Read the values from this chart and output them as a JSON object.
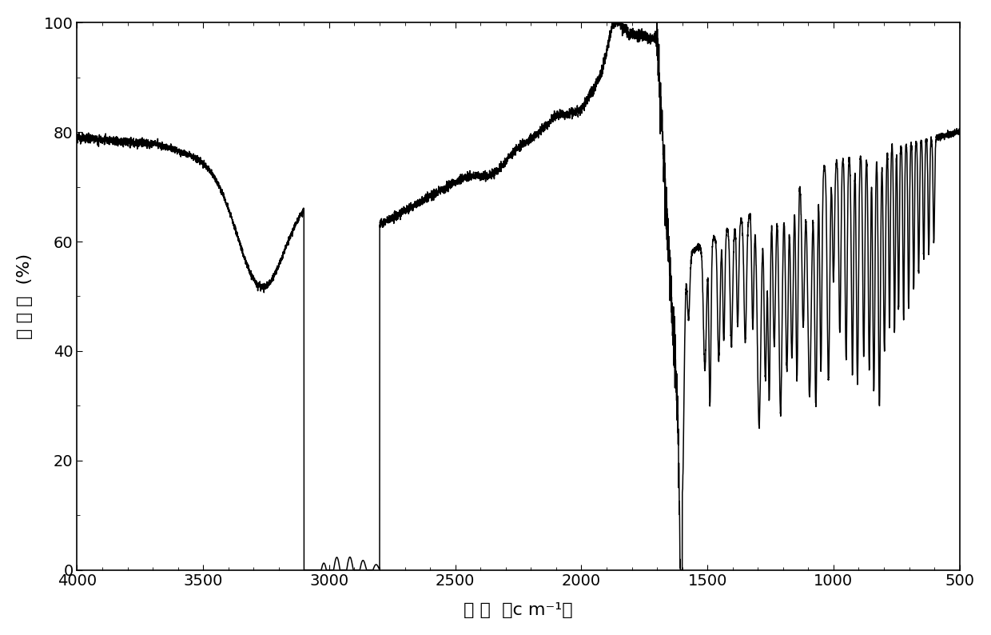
{
  "title": "",
  "xlabel": "波 数  （c m⁻¹）",
  "ylabel": "透 过 率  (%)",
  "xlim": [
    4000,
    500
  ],
  "ylim": [
    0,
    100
  ],
  "xticks": [
    4000,
    3500,
    3000,
    2500,
    2000,
    1500,
    1000,
    500
  ],
  "yticks": [
    0,
    20,
    40,
    60,
    80,
    100
  ],
  "background_color": "#ffffff",
  "line_color": "#000000",
  "line_width": 1.1,
  "noise_seed": 123
}
